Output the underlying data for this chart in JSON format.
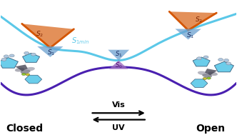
{
  "bg_color": "#ffffff",
  "s1_curve_color": "#5bc8e8",
  "s0_curve_color": "#4a20b0",
  "ci_cone_blue": "#6ba0d0",
  "ci_cone_orange": "#d45500",
  "ci_cone_purple": "#9b6abf",
  "closed_label": "Closed",
  "open_label": "Open",
  "vis_label": "Vis",
  "uv_label": "UV",
  "s1min_color": "#5bc8e8",
  "label_fontsize": 10,
  "small_fontsize": 6.5,
  "figsize": [
    3.32,
    1.89
  ],
  "dpi": 100
}
